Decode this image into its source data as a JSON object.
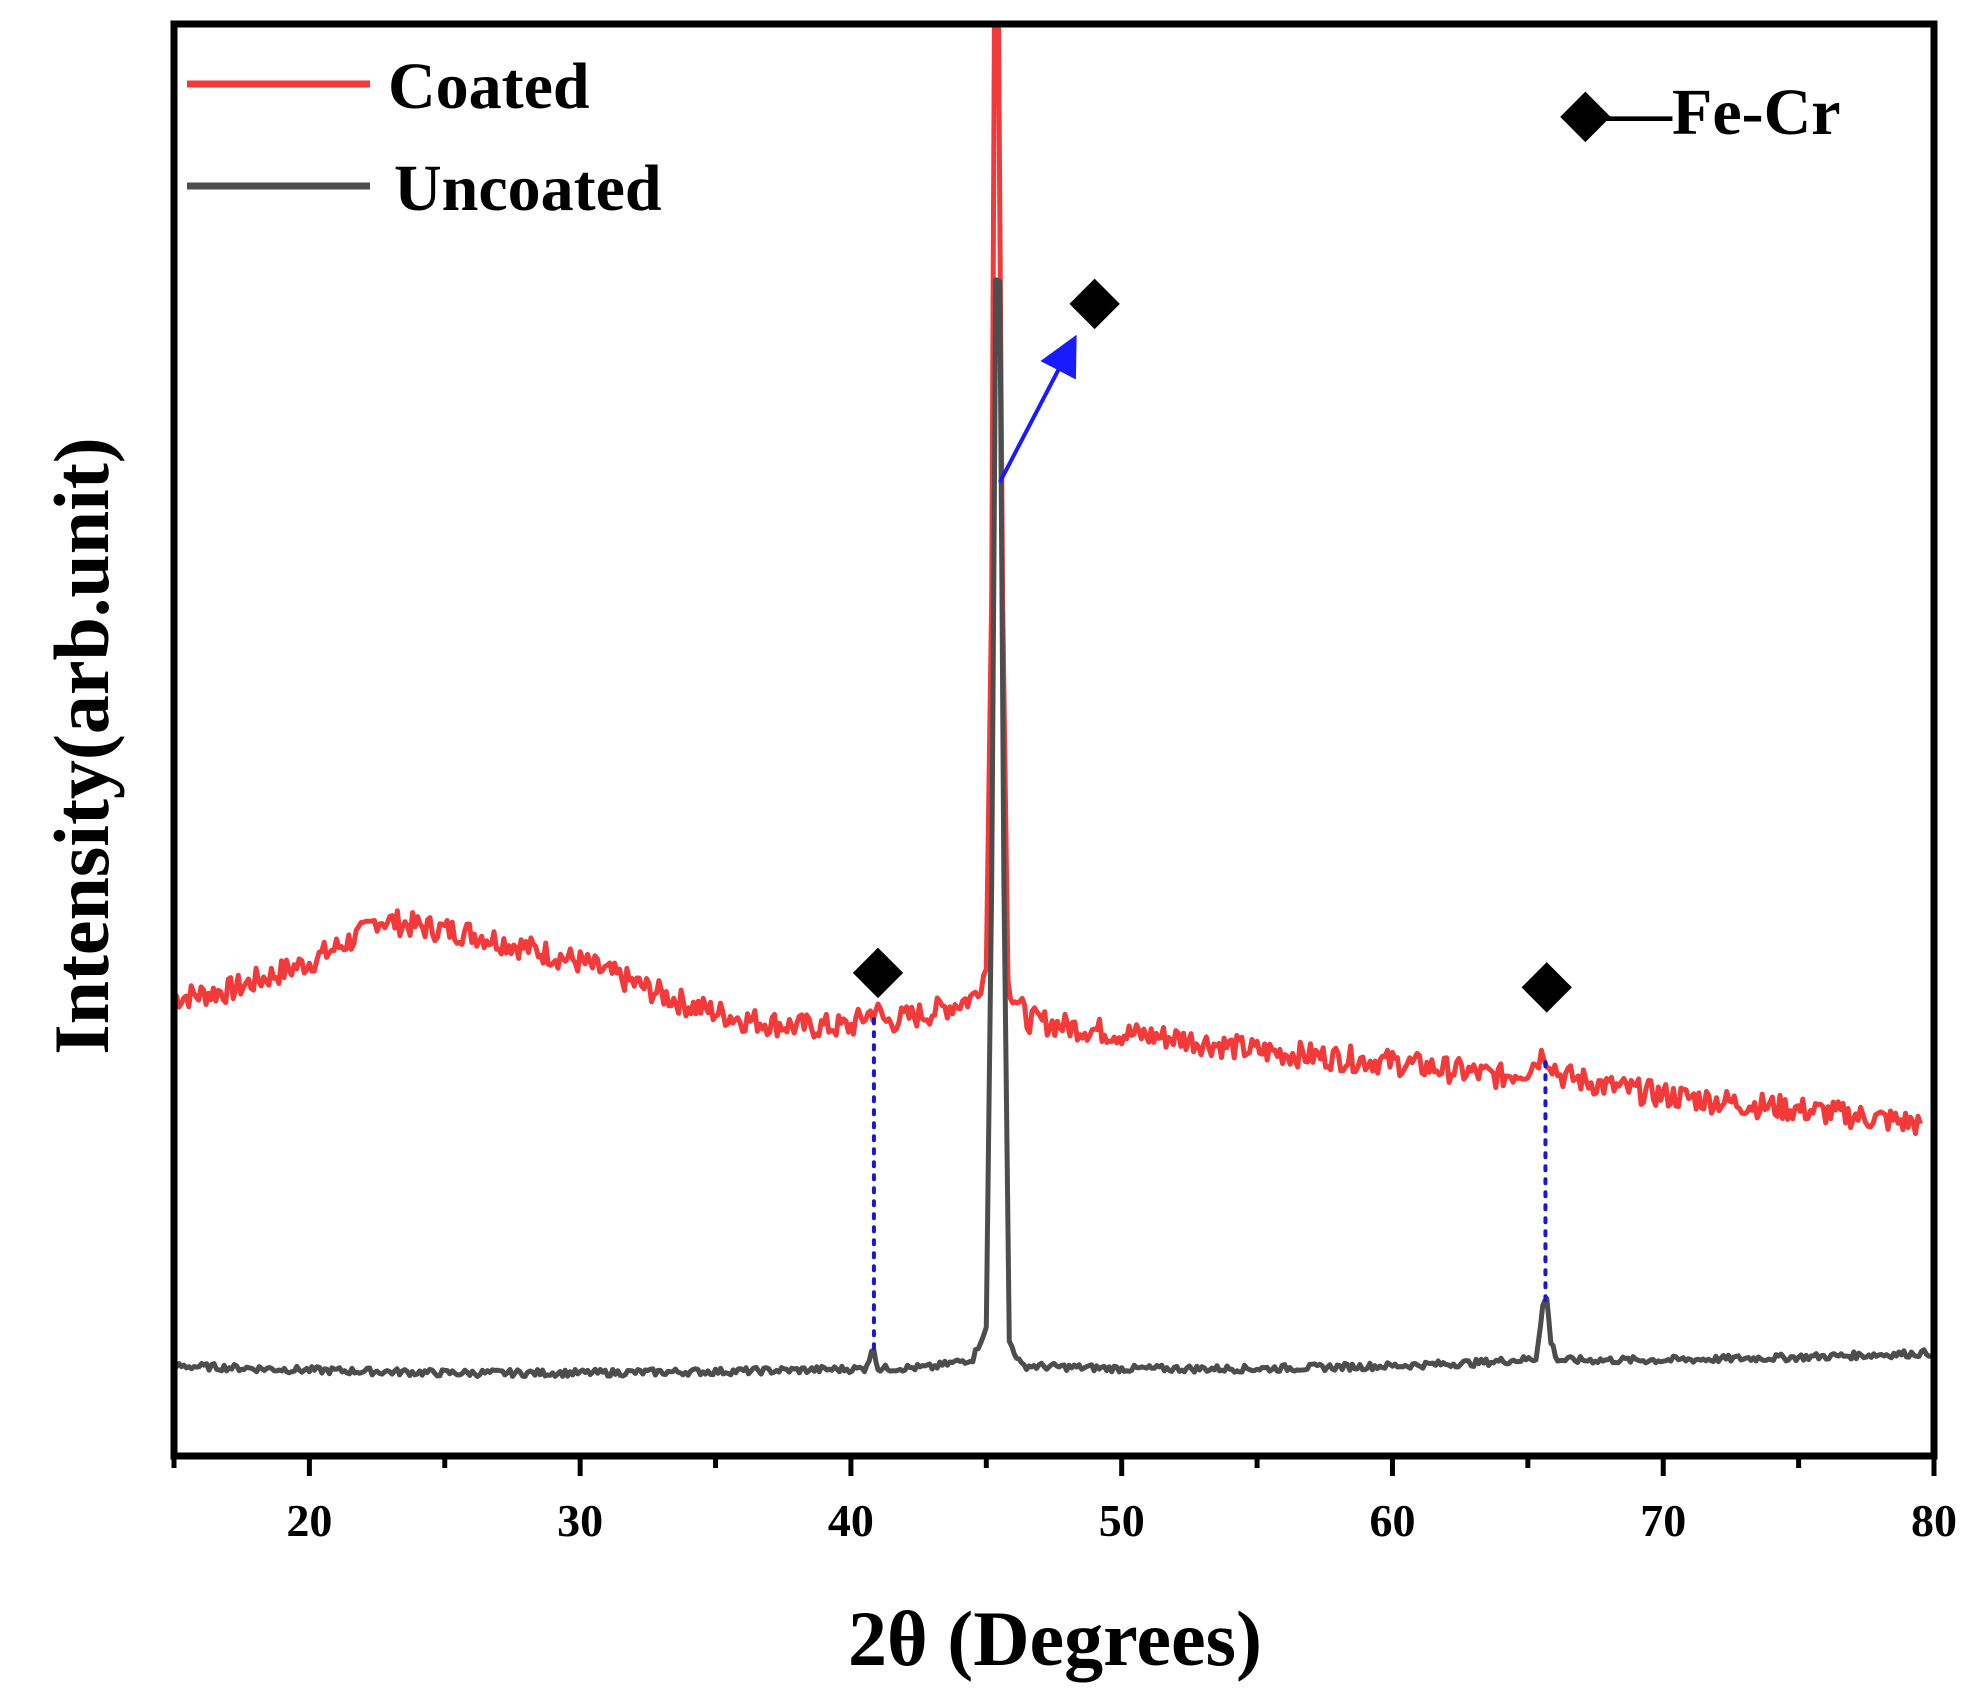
{
  "chart_data": {
    "type": "line",
    "title": "",
    "xlabel": "2θ (Degrees)",
    "ylabel": "Intensity(arb.unit)",
    "xlim": [
      15,
      80
    ],
    "ylim": [
      0,
      100
    ],
    "xticks": [
      20,
      30,
      40,
      50,
      60,
      70,
      80
    ],
    "yticks_visible": false,
    "grid": false,
    "legend": {
      "position": "top-left"
    },
    "series": [
      {
        "name": "Coated",
        "color": "#f23a3a",
        "note": "y values are relative intensity (arbitrary units, stacked offset)",
        "points": [
          [
            15,
            32
          ],
          [
            17,
            32.5
          ],
          [
            20,
            34.5
          ],
          [
            22,
            36.5
          ],
          [
            22.5,
            37.5
          ],
          [
            24,
            37
          ],
          [
            26,
            36.5
          ],
          [
            28,
            35.5
          ],
          [
            30,
            34.5
          ],
          [
            32,
            33
          ],
          [
            34,
            31.5
          ],
          [
            36,
            30.5
          ],
          [
            38,
            30
          ],
          [
            40,
            30
          ],
          [
            40.9,
            31.2
          ],
          [
            41.3,
            30.3
          ],
          [
            43,
            31
          ],
          [
            44.5,
            32
          ],
          [
            45.0,
            34
          ],
          [
            45.2,
            60
          ],
          [
            45.3,
            100
          ],
          [
            45.45,
            100
          ],
          [
            45.6,
            60
          ],
          [
            45.8,
            33
          ],
          [
            46.5,
            30.5
          ],
          [
            48,
            30
          ],
          [
            50,
            29.5
          ],
          [
            52,
            29.2
          ],
          [
            55,
            28.3
          ],
          [
            58,
            27.8
          ],
          [
            60,
            27.5
          ],
          [
            62,
            27
          ],
          [
            64,
            26.5
          ],
          [
            65.0,
            27
          ],
          [
            65.6,
            28.2
          ],
          [
            66.2,
            26.6
          ],
          [
            68,
            25.8
          ],
          [
            70,
            25.2
          ],
          [
            73,
            24.6
          ],
          [
            76,
            24
          ],
          [
            79.5,
            23.2
          ]
        ]
      },
      {
        "name": "Uncoated",
        "color": "#4d4d4d",
        "note": "y values are relative intensity (arbitrary units)",
        "points": [
          [
            15,
            6.3
          ],
          [
            20,
            6.0
          ],
          [
            25,
            5.8
          ],
          [
            30,
            5.8
          ],
          [
            35,
            5.9
          ],
          [
            38,
            6.0
          ],
          [
            40.5,
            6.1
          ],
          [
            40.85,
            7.5
          ],
          [
            41.0,
            6.1
          ],
          [
            43,
            6.2
          ],
          [
            44.5,
            6.8
          ],
          [
            45.0,
            9
          ],
          [
            45.2,
            40
          ],
          [
            45.35,
            82
          ],
          [
            45.5,
            82
          ],
          [
            45.65,
            40
          ],
          [
            45.85,
            8
          ],
          [
            46.3,
            6.3
          ],
          [
            50,
            6.1
          ],
          [
            55,
            6.1
          ],
          [
            60,
            6.3
          ],
          [
            63,
            6.5
          ],
          [
            65.3,
            6.8
          ],
          [
            65.55,
            10.5
          ],
          [
            65.7,
            11
          ],
          [
            65.85,
            8
          ],
          [
            66.1,
            6.7
          ],
          [
            70,
            6.7
          ],
          [
            75,
            6.9
          ],
          [
            80,
            7.2
          ]
        ]
      }
    ],
    "annotations": [
      {
        "type": "marker",
        "symbol": "◆",
        "x": 41.0,
        "y": 33.8
      },
      {
        "type": "marker",
        "symbol": "◆",
        "x": 65.7,
        "y": 32.8
      },
      {
        "type": "marker",
        "symbol": "◆",
        "x": 49.0,
        "y": 80.5
      },
      {
        "type": "arrow",
        "color": "#1a1aff",
        "from": [
          45.5,
          68
        ],
        "to": [
          48.2,
          77.8
        ]
      },
      {
        "type": "dotted-line",
        "color": "#1a1acc",
        "x": 40.85,
        "from_y": 30.5,
        "to_y": 7.5
      },
      {
        "type": "dotted-line",
        "color": "#1a1acc",
        "x": 65.65,
        "from_y": 27.5,
        "to_y": 10.5
      }
    ],
    "phase_legend": {
      "symbol": "◆",
      "label": "—Fe-Cr"
    }
  }
}
